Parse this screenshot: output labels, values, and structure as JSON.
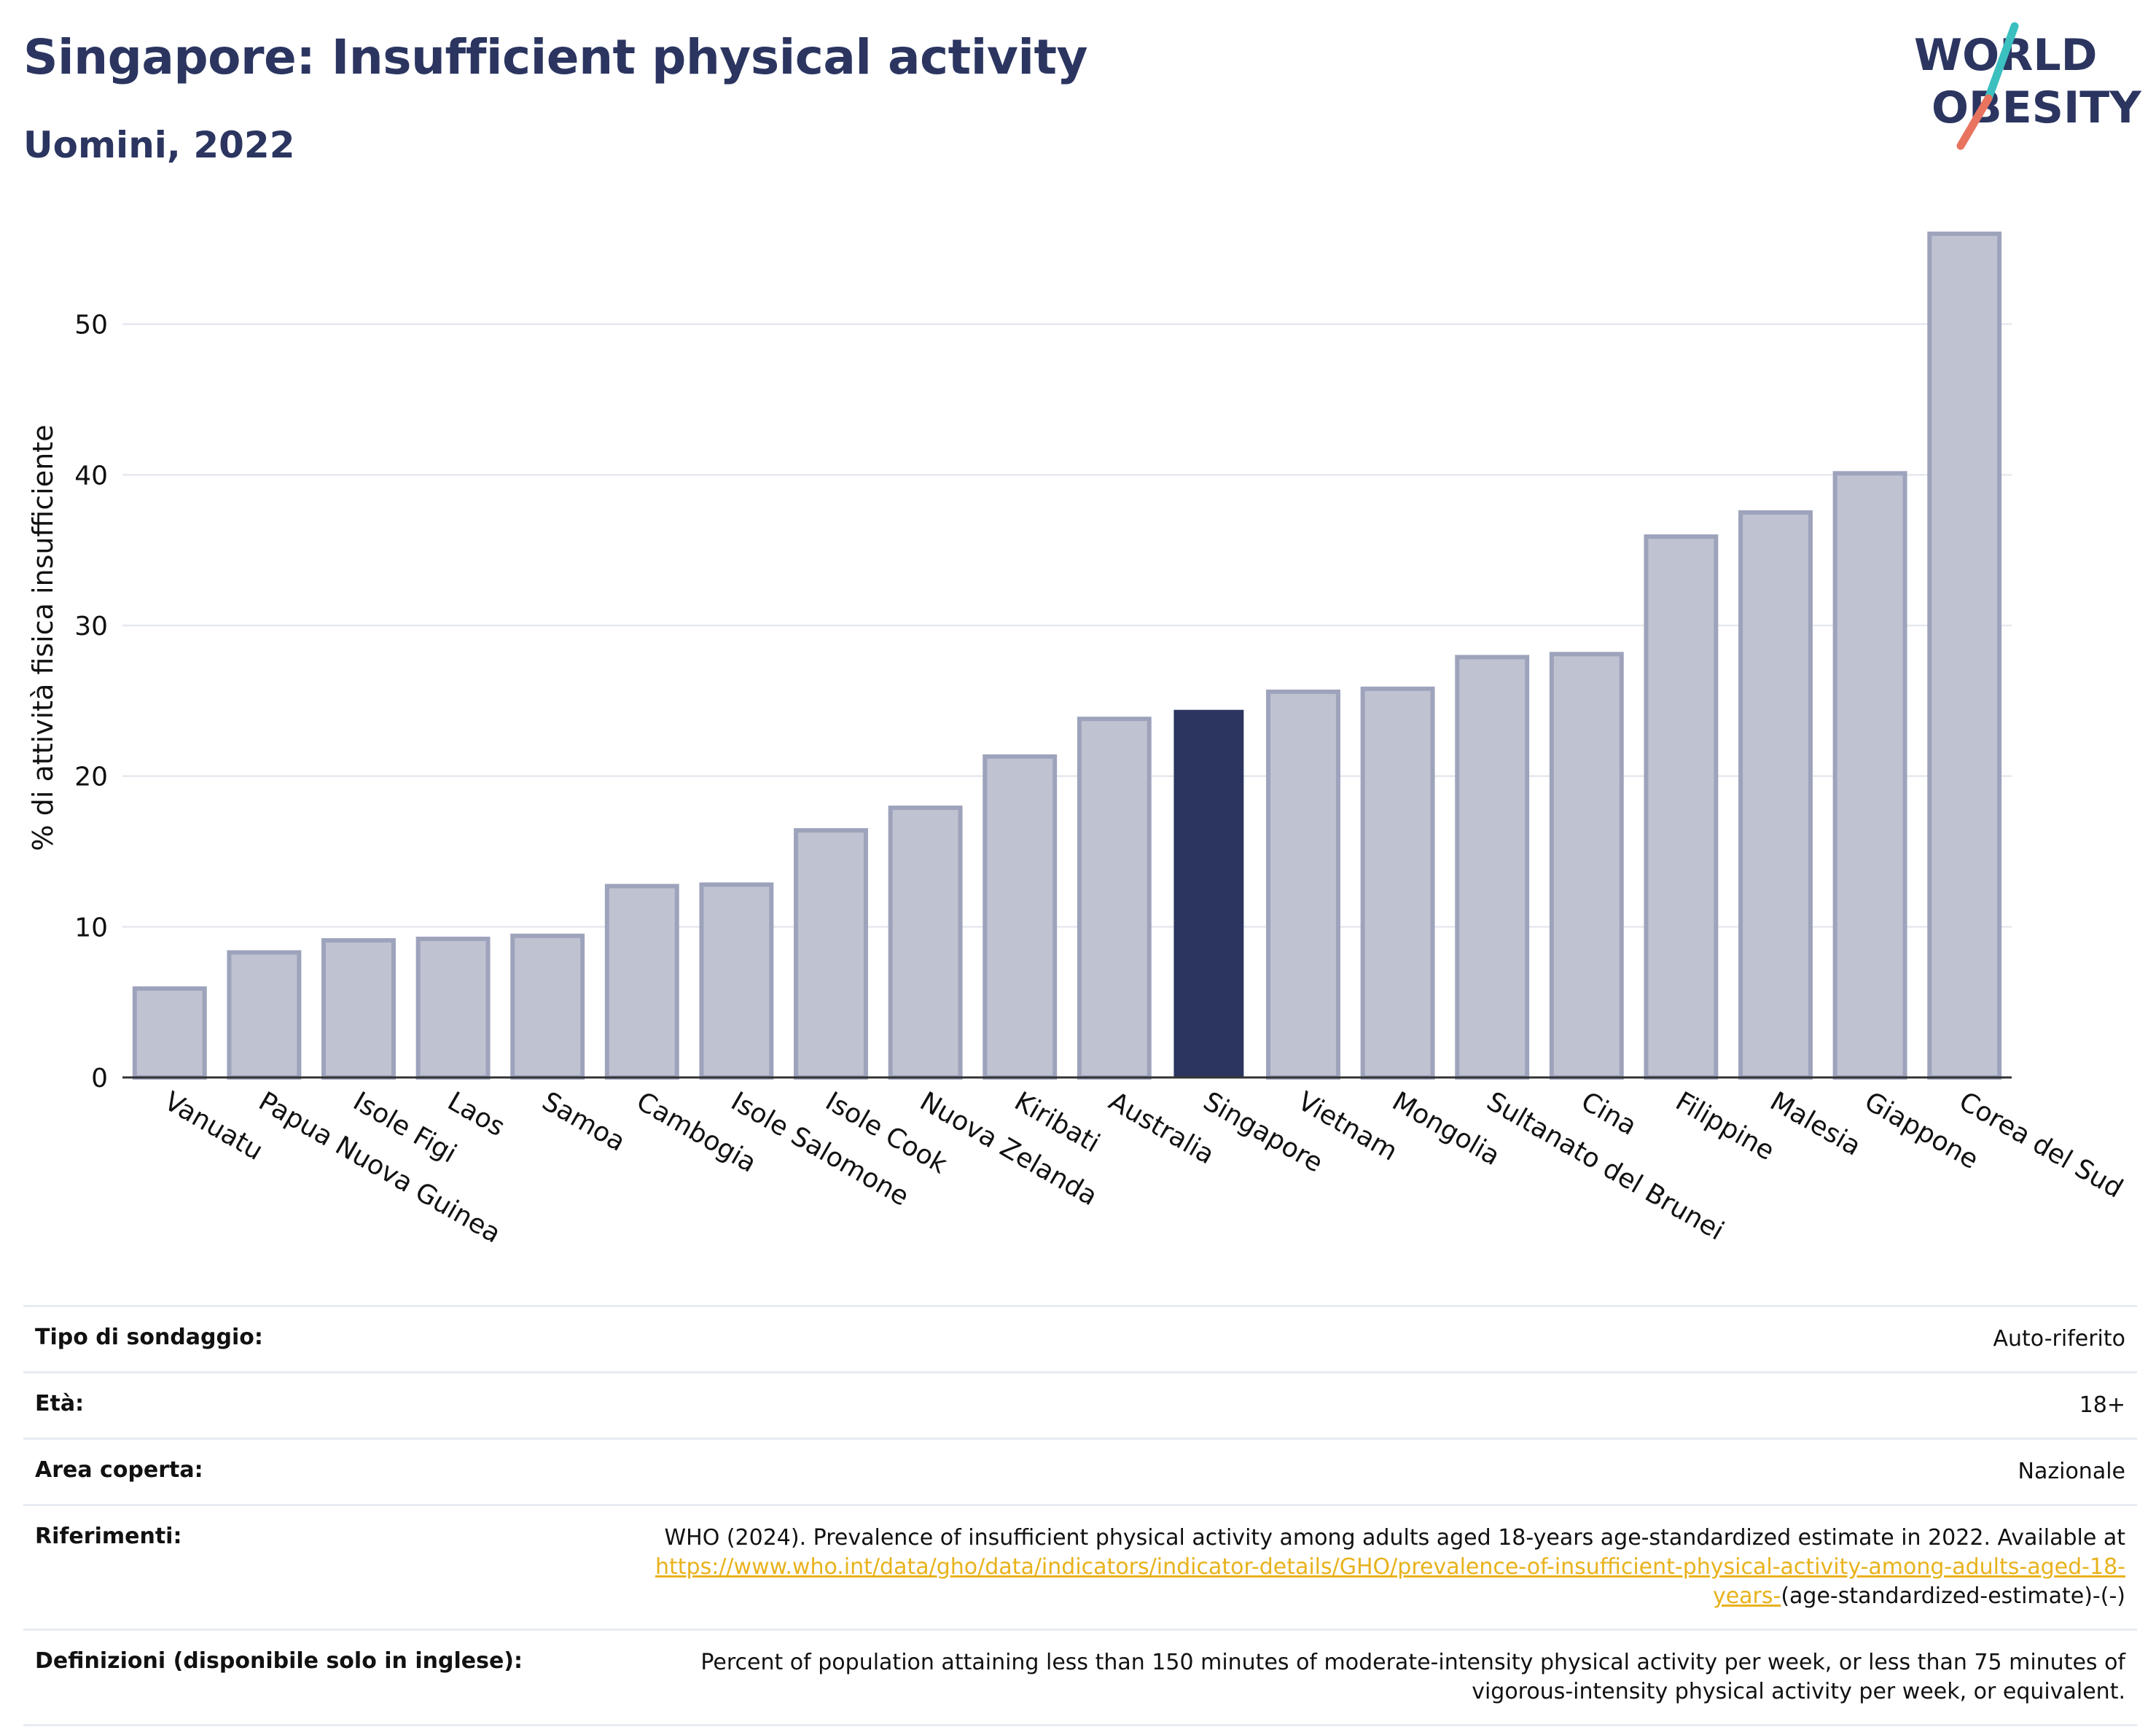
{
  "header": {
    "title": "Singapore: Insufficient physical activity",
    "subtitle": "Uomini, 2022"
  },
  "logo": {
    "line1": "WORLD",
    "line2": "OBESITY"
  },
  "colors": {
    "highlight": "#2b3560",
    "bar": "#bfc2d1",
    "bar_border": "#9ea3bc",
    "logo_teal": "#3bbfbf",
    "logo_coral": "#e8735e"
  },
  "chart_data": {
    "type": "bar",
    "title": "Singapore: Insufficient physical activity",
    "subtitle": "Uomini, 2022",
    "ylabel": "% di attività fisica insufficiente",
    "xlabel": "",
    "ylim": [
      0,
      57
    ],
    "yticks": [
      0,
      10,
      20,
      30,
      40,
      50
    ],
    "grid": true,
    "highlight": "Singapore",
    "categories": [
      "Vanuatu",
      "Papua Nuova Guinea",
      "Isole Figi",
      "Laos",
      "Samoa",
      "Cambogia",
      "Isole Salomone",
      "Isole Cook",
      "Nuova Zelanda",
      "Kiribati",
      "Australia",
      "Singapore",
      "Vietnam",
      "Mongolia",
      "Sultanato del Brunei",
      "Cina",
      "Filippine",
      "Malesia",
      "Giappone",
      "Corea del Sud"
    ],
    "values": [
      5.9,
      8.3,
      9.1,
      9.2,
      9.4,
      12.7,
      12.8,
      16.4,
      17.9,
      21.3,
      23.8,
      24.4,
      25.6,
      25.8,
      27.9,
      28.1,
      35.9,
      37.5,
      40.1,
      56.0
    ]
  },
  "metadata": [
    {
      "label": "Tipo di sondaggio:",
      "value": "Auto-riferito"
    },
    {
      "label": "Età:",
      "value": "18+"
    },
    {
      "label": "Area coperta:",
      "value": "Nazionale"
    },
    {
      "label": "Riferimenti:",
      "value": "WHO (2024). Prevalence of insufficient physical activity among adults aged 18-years age-standardized estimate in 2022. Available at",
      "link": "https://www.who.int/data/gho/data/indicators/indicator-details/GHO/prevalence-of-insufficient-physical-activity-among-adults-aged-18-years-",
      "suffix": "(age-standardized-estimate)-(-)"
    },
    {
      "label": "Definizioni (disponibile solo in inglese):",
      "value": "Percent of population attaining less than 150 minutes of moderate-intensity physical activity per week, or less than 75 minutes of vigorous-intensity physical activity per week, or equivalent."
    }
  ]
}
